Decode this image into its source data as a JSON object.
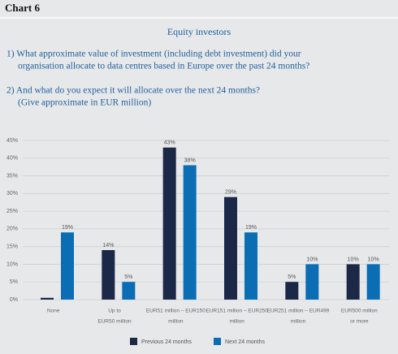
{
  "header": "Chart 6",
  "chart_data": {
    "type": "bar",
    "title": "Equity investors",
    "questions": [
      "1) What approximate value of investment (including debt investment) did your",
      "organisation allocate to data centres based in Europe over the past 24 months?",
      "2) And what do you expect it will allocate over the next 24 months?",
      "(Give approximate in EUR million)"
    ],
    "categories": [
      [
        "None"
      ],
      [
        "Up to",
        "EUR50 million"
      ],
      [
        "EUR51 million – EUR150",
        "million"
      ],
      [
        "EUR151 million – EUR250",
        "million"
      ],
      [
        "EUR251 million – EUR499",
        "million"
      ],
      [
        "EUR500 million",
        "or more"
      ]
    ],
    "series": [
      {
        "name": "Previous 24 months",
        "color": "#1b2847",
        "values": [
          0.5,
          14,
          43,
          29,
          5,
          10
        ],
        "value_labels": [
          null,
          "14%",
          "43%",
          "29%",
          "5%",
          "10%"
        ]
      },
      {
        "name": "Next 24 months",
        "color": "#0b6db3",
        "values": [
          19,
          5,
          38,
          19,
          10,
          10
        ],
        "value_labels": [
          "19%",
          "5%",
          "38%",
          "19%",
          "10%",
          "10%"
        ]
      }
    ],
    "ylim": [
      0,
      45
    ],
    "yticks": [
      {
        "value": 0,
        "label": "0%"
      },
      {
        "value": 5,
        "label": "5%"
      },
      {
        "value": 10,
        "label": "10%"
      },
      {
        "value": 15,
        "label": "15%"
      },
      {
        "value": 20,
        "label": "20%"
      },
      {
        "value": 25,
        "label": "25%"
      },
      {
        "value": 30,
        "label": "30%"
      },
      {
        "value": 35,
        "label": "35%"
      },
      {
        "value": 40,
        "label": "40%"
      },
      {
        "value": 45,
        "label": "45%"
      }
    ],
    "grid": true,
    "legend": "bottom"
  }
}
